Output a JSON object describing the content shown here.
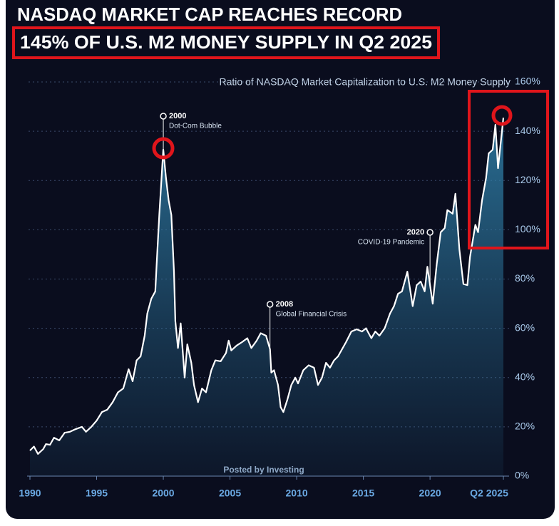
{
  "chart_data": {
    "type": "area",
    "title": "NASDAQ MARKET CAP REACHES RECORD",
    "subtitle": "145% OF U.S. M2 MONEY SUPPLY IN Q2 2025",
    "y_label": "Ratio of NASDAQ Market Capitalization to U.S. M2 Money Supply",
    "watermark": "Posted by Investing",
    "color": "#ffffff",
    "fill_color": "#2f7fa8",
    "grid": true,
    "xlim": [
      1990,
      2025.5
    ],
    "ylim": [
      0,
      160
    ],
    "xticks": [
      1990,
      1995,
      2000,
      2005,
      2010,
      2015,
      2020,
      {
        "value": 2025.5,
        "label": "Q2 2025"
      }
    ],
    "yticks": [
      {
        "value": 0,
        "label": "0%"
      },
      {
        "value": 20,
        "label": "20%"
      },
      {
        "value": 40,
        "label": "40%"
      },
      {
        "value": 60,
        "label": "60%"
      },
      {
        "value": 80,
        "label": "80%"
      },
      {
        "value": 100,
        "label": "100%"
      },
      {
        "value": 120,
        "label": "120%"
      },
      {
        "value": 140,
        "label": "140%"
      },
      {
        "value": 160,
        "label": "160%"
      }
    ],
    "x": [
      1990.0,
      1990.3,
      1990.6,
      1991.0,
      1991.2,
      1991.5,
      1991.8,
      1992.2,
      1992.6,
      1993.0,
      1993.4,
      1993.9,
      1994.2,
      1994.6,
      1995.0,
      1995.4,
      1995.8,
      1996.2,
      1996.6,
      1997.0,
      1997.4,
      1997.7,
      1998.0,
      1998.3,
      1998.6,
      1998.8,
      1999.1,
      1999.4,
      1999.5,
      1999.7,
      2000.0,
      2000.2,
      2000.4,
      2000.6,
      2000.8,
      2000.9,
      2001.1,
      2001.3,
      2001.6,
      2001.8,
      2002.1,
      2002.3,
      2002.6,
      2002.9,
      2003.2,
      2003.6,
      2003.9,
      2004.3,
      2004.7,
      2004.9,
      2005.1,
      2005.5,
      2005.9,
      2006.3,
      2006.6,
      2007.0,
      2007.3,
      2007.7,
      2008.0,
      2008.1,
      2008.3,
      2008.6,
      2008.8,
      2009.0,
      2009.3,
      2009.6,
      2009.9,
      2010.1,
      2010.5,
      2010.9,
      2011.3,
      2011.6,
      2011.9,
      2012.2,
      2012.5,
      2012.8,
      2013.1,
      2013.4,
      2013.7,
      2014.1,
      2014.5,
      2014.9,
      2015.2,
      2015.6,
      2015.9,
      2016.2,
      2016.6,
      2017.0,
      2017.3,
      2017.6,
      2017.9,
      2018.3,
      2018.7,
      2019.0,
      2019.3,
      2019.6,
      2019.8,
      2020.2,
      2020.5,
      2020.8,
      2021.1,
      2021.3,
      2021.7,
      2021.9,
      2022.2,
      2022.5,
      2022.8,
      2023.0,
      2023.4,
      2023.6,
      2023.9,
      2024.2,
      2024.4,
      2024.7,
      2024.9,
      2025.1,
      2025.5
    ],
    "values": [
      10.4,
      12,
      9,
      11,
      13,
      12.7,
      15.6,
      14.5,
      17.6,
      18,
      19,
      20,
      18,
      20,
      22.5,
      26,
      27,
      30,
      34,
      35.6,
      43.4,
      38.5,
      47,
      48.6,
      57,
      66,
      72,
      75,
      86,
      106,
      132.5,
      121,
      112,
      106,
      83,
      63,
      52,
      62,
      40,
      53.5,
      46,
      37,
      30,
      35.6,
      34,
      43,
      47,
      46.6,
      50,
      55,
      51,
      53,
      54.4,
      56,
      52,
      55,
      58,
      57,
      51.5,
      42,
      43,
      37,
      28,
      26,
      31,
      37,
      40,
      37.6,
      43,
      45,
      44,
      37,
      40,
      46,
      44,
      47,
      48.6,
      51.5,
      54.4,
      58.7,
      59.6,
      58.7,
      60,
      56,
      58.7,
      57,
      60,
      66,
      69,
      74,
      75,
      83,
      69,
      77.5,
      79,
      75,
      85,
      70,
      86,
      99,
      100.7,
      108,
      106.5,
      114.6,
      92,
      78,
      77.5,
      89,
      102,
      99,
      112,
      121,
      131,
      132.5,
      142.6,
      125,
      145.5
    ],
    "annotations": [
      {
        "x": 2000,
        "year": "2000",
        "text": "Dot-Com Bubble"
      },
      {
        "x": 2008,
        "year": "2008",
        "text": "Global Financial Crisis"
      },
      {
        "x": 2020,
        "year": "2020",
        "text": "COVID-19 Pandemic"
      }
    ]
  }
}
